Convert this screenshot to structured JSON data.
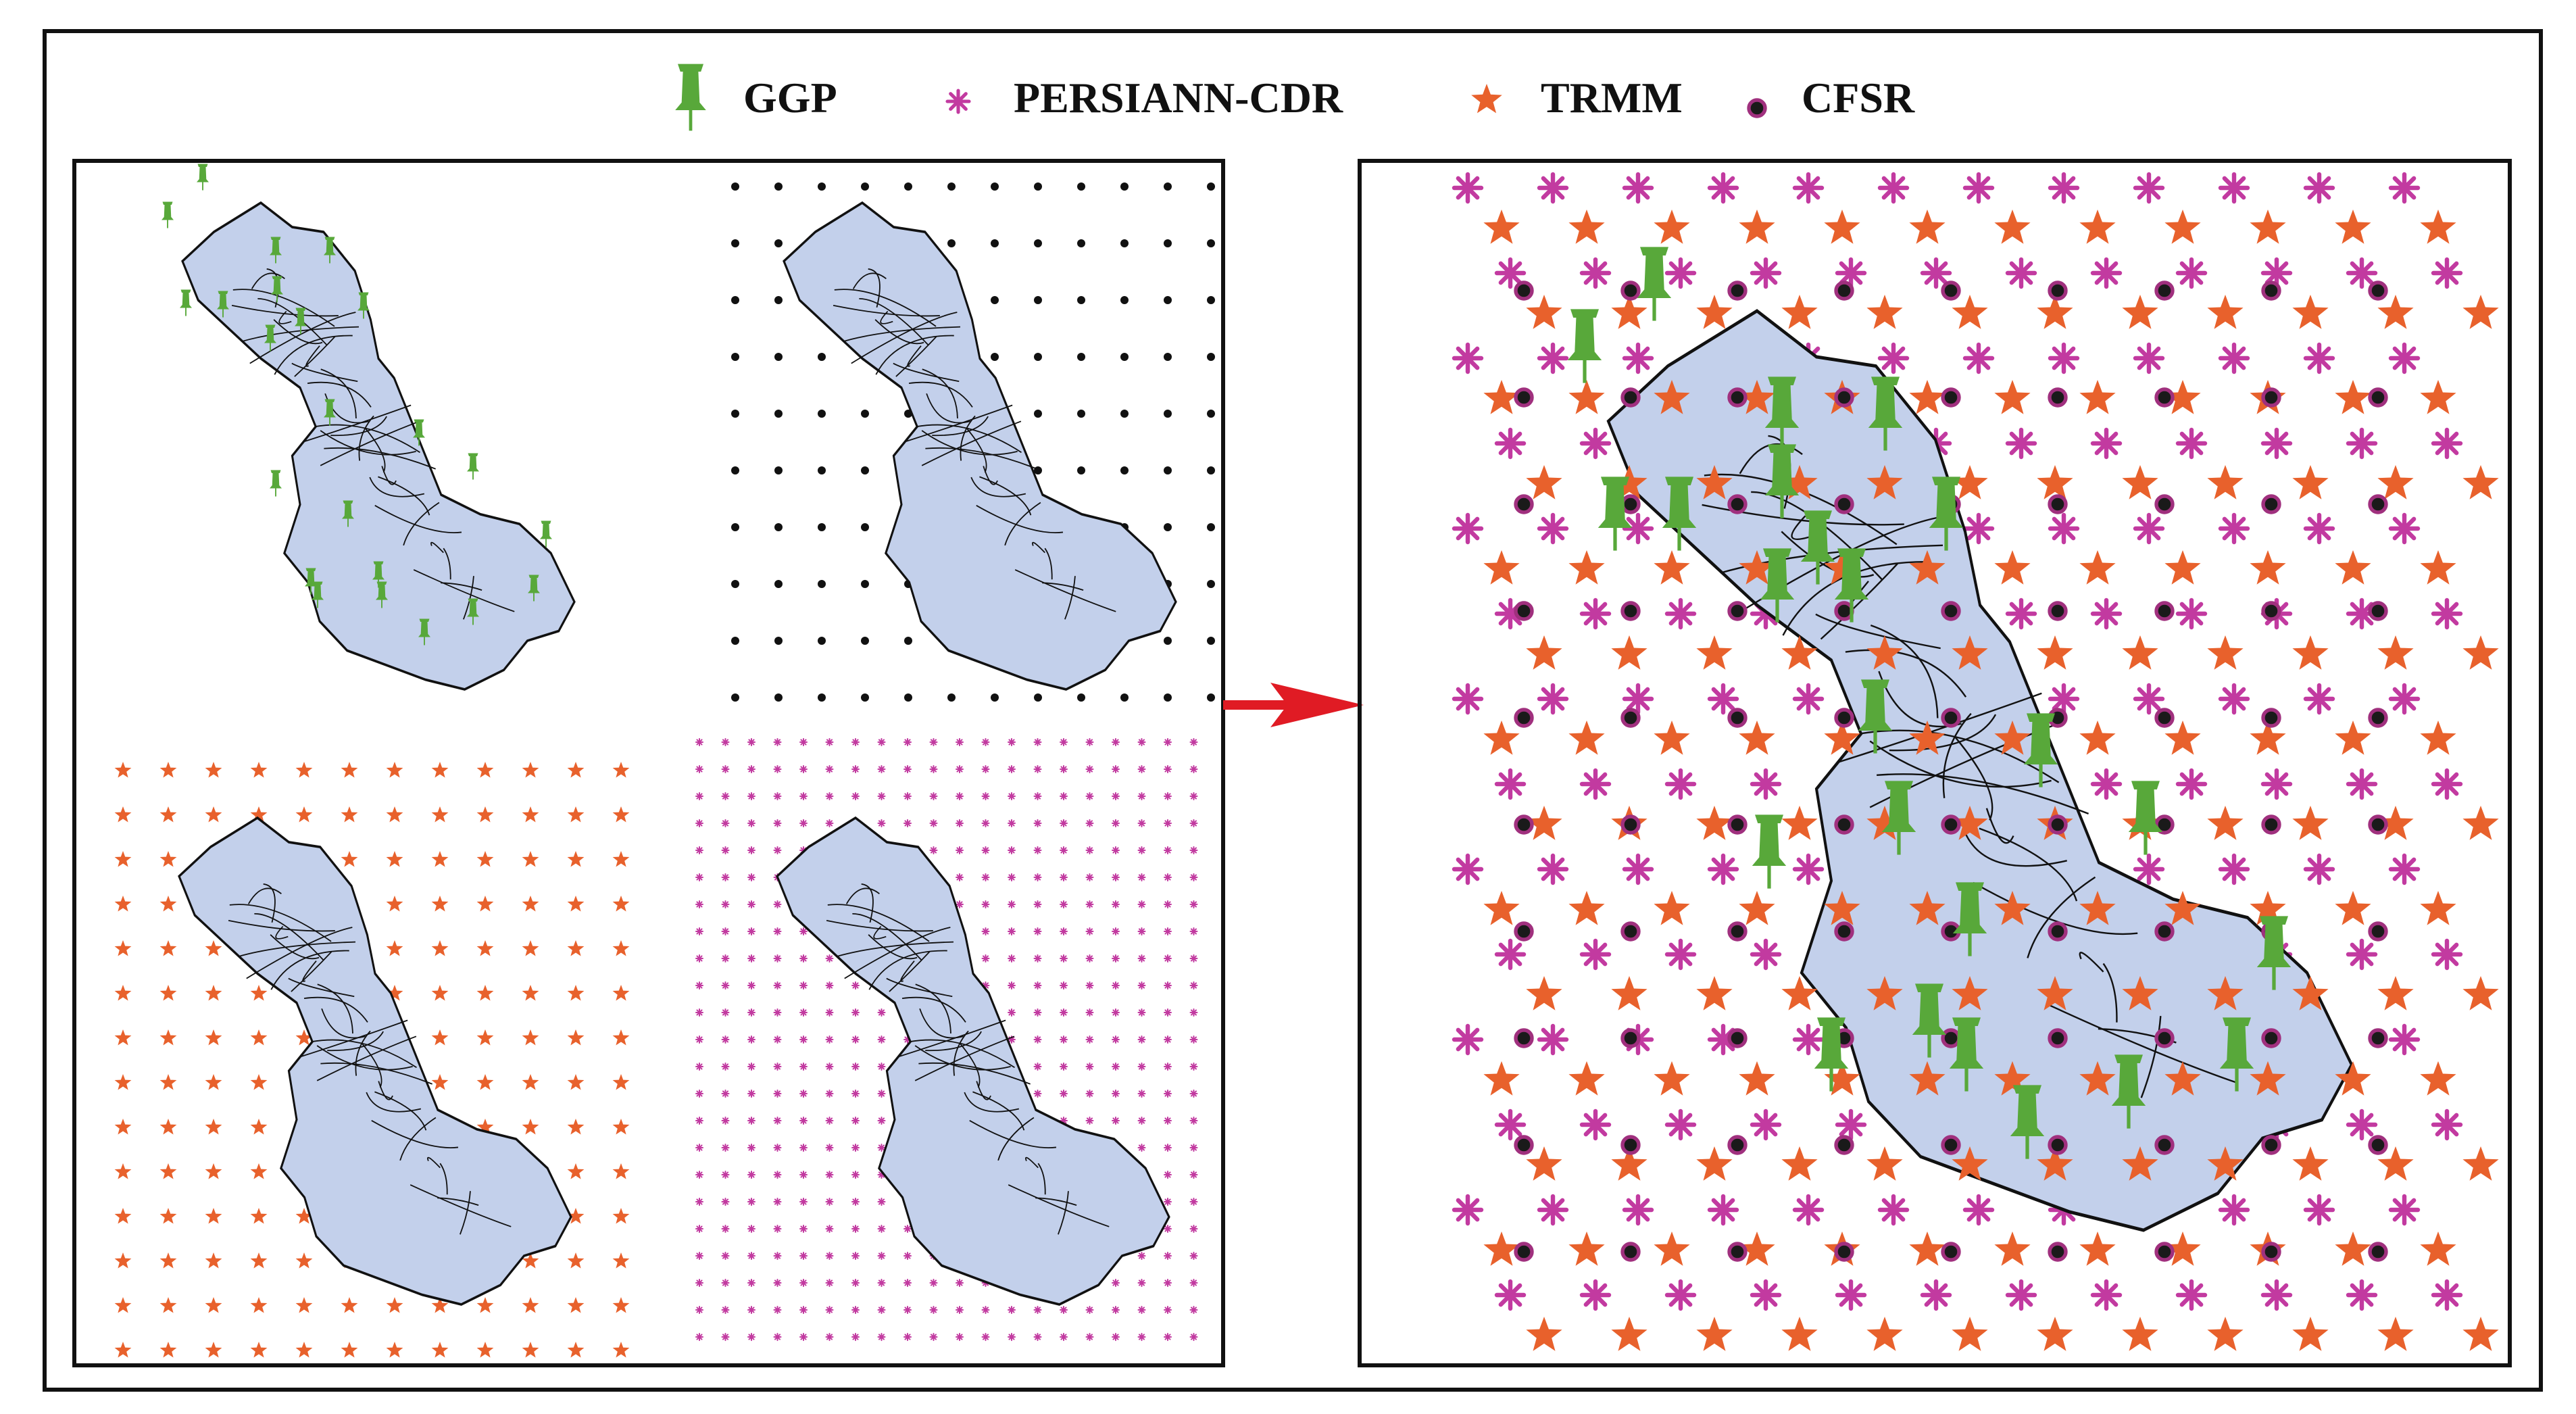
{
  "legend": {
    "items": [
      {
        "key": "ggp",
        "label": "GGP",
        "icon": "pushpin-icon",
        "color": "#58a83a"
      },
      {
        "key": "persiann",
        "label": "PERSIANN-CDR",
        "icon": "asterisk-icon",
        "color": "#c23aa0"
      },
      {
        "key": "trmm",
        "label": "TRMM",
        "icon": "star-icon",
        "color": "#e8612c"
      },
      {
        "key": "cfsr",
        "label": "CFSR",
        "icon": "ringed-dot-icon",
        "color": "#1a1a1a",
        "ring_color": "#a0307e"
      }
    ]
  },
  "basin": {
    "fill": "#c3d0eb",
    "stroke": "#111111"
  },
  "arrow": {
    "color": "#e01b24"
  }
}
